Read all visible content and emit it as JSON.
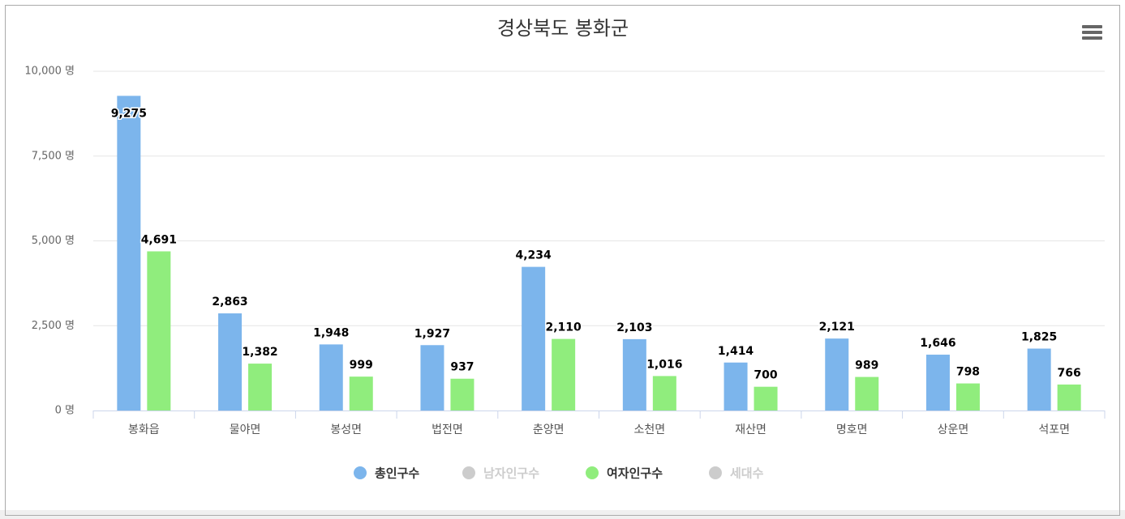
{
  "chart_data": {
    "type": "bar",
    "title": "경상북도 봉화군",
    "categories": [
      "봉화읍",
      "물야면",
      "봉성면",
      "법전면",
      "춘양면",
      "소천면",
      "재산면",
      "명호면",
      "상운면",
      "석포면"
    ],
    "series": [
      {
        "name": "총인구수",
        "color": "#7cb5ec",
        "visible": true,
        "values": [
          9275,
          2863,
          1948,
          1927,
          4234,
          2103,
          1414,
          2121,
          1646,
          1825
        ],
        "value_labels": [
          "9,275",
          "2,863",
          "1,948",
          "1,927",
          "4,234",
          "2,103",
          "1,414",
          "2,121",
          "1,646",
          "1,825"
        ]
      },
      {
        "name": "남자인구수",
        "color": "#cccccc",
        "visible": false,
        "values": [
          null,
          null,
          null,
          null,
          null,
          null,
          null,
          null,
          null,
          null
        ]
      },
      {
        "name": "여자인구수",
        "color": "#90ed7d",
        "visible": true,
        "values": [
          4691,
          1382,
          999,
          937,
          2110,
          1016,
          700,
          989,
          798,
          766
        ],
        "value_labels": [
          "4,691",
          "1,382",
          "999",
          "937",
          "2,110",
          "1,016",
          "700",
          "989",
          "798",
          "766"
        ]
      },
      {
        "name": "세대수",
        "color": "#cccccc",
        "visible": false,
        "values": [
          null,
          null,
          null,
          null,
          null,
          null,
          null,
          null,
          null,
          null
        ]
      }
    ],
    "ylim": [
      0,
      10000
    ],
    "yticks": [
      {
        "value": 0,
        "label": "0 명"
      },
      {
        "value": 2500,
        "label": "2,500 명"
      },
      {
        "value": 5000,
        "label": "5,000 명"
      },
      {
        "value": 7500,
        "label": "7,500 명"
      },
      {
        "value": 10000,
        "label": "10,000 명"
      }
    ],
    "grid": true
  }
}
